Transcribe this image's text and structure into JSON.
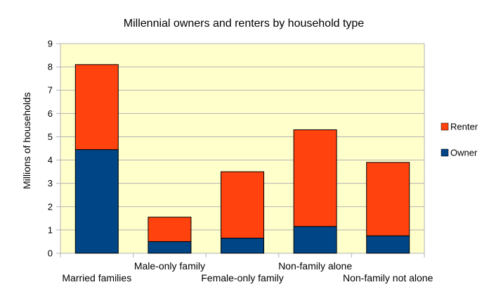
{
  "chart_data": {
    "type": "bar",
    "stacked": true,
    "title": "Millennial owners and renters by household type",
    "xlabel": "",
    "ylabel": "Millions of households",
    "ylim": [
      0,
      9
    ],
    "yticks": [
      0,
      1,
      2,
      3,
      4,
      5,
      6,
      7,
      8,
      9
    ],
    "grid": true,
    "legend_position": "right",
    "categories": [
      "Married families",
      "Male-only family",
      "Female-only family",
      "Non-family alone",
      "Non-family not alone"
    ],
    "series": [
      {
        "name": "Owner",
        "color": "#004586",
        "values": [
          4.45,
          0.5,
          0.65,
          1.15,
          0.75
        ]
      },
      {
        "name": "Renter",
        "color": "#ff420e",
        "values": [
          3.65,
          1.05,
          2.85,
          4.15,
          3.15
        ]
      }
    ],
    "plot_background": "#ffffcc"
  }
}
